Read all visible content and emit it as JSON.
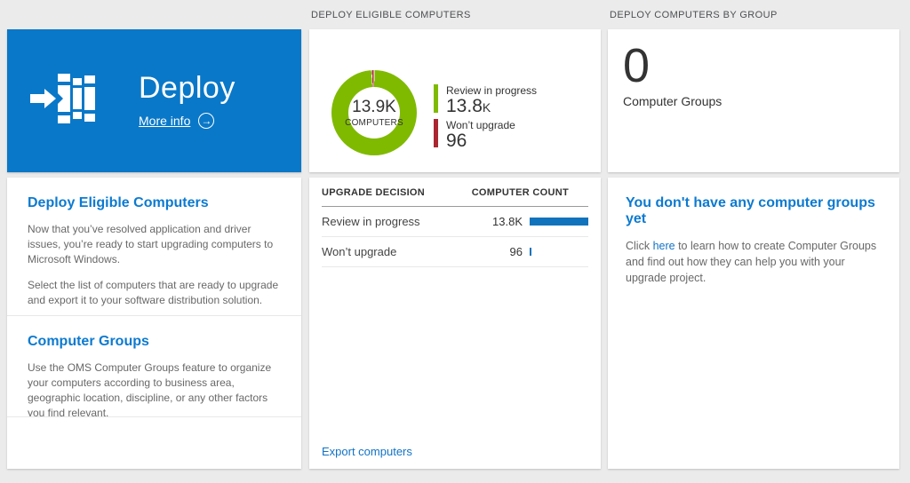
{
  "colors": {
    "page_bg": "#ebebeb",
    "tile_blue": "#0a78c8",
    "accent_blue": "#0c7ad0",
    "link_blue": "#1173c6",
    "bar_blue": "#1173bc",
    "chart_green": "#7fba00",
    "chart_red": "#aa2630",
    "text_dark": "#333333",
    "text_gray": "#686868",
    "header_gray": "#4d4f53"
  },
  "icons": {
    "more_info_arrow": "→"
  },
  "left": {
    "tile": {
      "title": "Deploy",
      "more_info_label": "More info"
    },
    "card": {
      "sections": [
        {
          "heading": "Deploy Eligible Computers",
          "paragraphs": [
            "Now that you’ve resolved application and driver issues, you’re ready to start upgrading computers to Microsoft Windows.",
            "Select the list of computers that are ready to upgrade and export it to your software distribution solution."
          ]
        },
        {
          "heading": "Computer Groups",
          "paragraphs": [
            "Use the OMS Computer Groups feature to organize your computers according to business area, geographic location, discipline, or any other factors you find relevant."
          ]
        }
      ]
    }
  },
  "middle": {
    "header": "DEPLOY ELIGIBLE COMPUTERS",
    "table": {
      "columns": [
        "UPGRADE DECISION",
        "COMPUTER COUNT"
      ],
      "rows": [
        {
          "label": "Review in progress",
          "count": "13.8K",
          "value": 13800,
          "bar_pct": 100
        },
        {
          "label": "Won’t upgrade",
          "count": "96",
          "value": 96,
          "bar_pct": 1
        }
      ]
    },
    "export_link": "Export computers"
  },
  "right": {
    "header": "DEPLOY COMPUTERS BY GROUP",
    "count_card": {
      "value": "0",
      "label": "Computer Groups"
    },
    "info_card": {
      "heading": "You don't have any computer groups yet",
      "text_prefix": "Click ",
      "link_text": "here",
      "text_suffix": " to learn how to create Computer Groups and find out how they can help you with your upgrade project."
    }
  },
  "chart_data": {
    "type": "donut",
    "title": "DEPLOY ELIGIBLE COMPUTERS",
    "center_value": "13.9K",
    "center_label": "COMPUTERS",
    "total_computers": 13900,
    "legend_position": "right",
    "slices": [
      {
        "label": "Review in progress",
        "value": 13800,
        "display": "13.8",
        "suffix": "K",
        "color": "#7fba00"
      },
      {
        "label": "Won’t upgrade",
        "value": 96,
        "display": "96",
        "suffix": "",
        "color": "#aa2630"
      }
    ]
  }
}
